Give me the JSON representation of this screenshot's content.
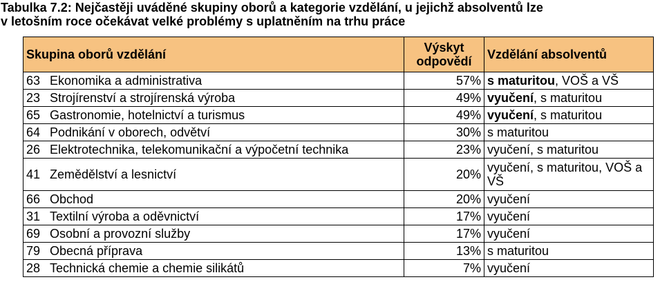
{
  "caption": {
    "line1": "Tabulka 7.2: Nejčastěji uváděné skupiny oborů a kategorie vzdělání, u jejichž absolventů lze",
    "line2": "v letošním roce očekávat velké problémy s uplatněním na trhu práce"
  },
  "table": {
    "header": {
      "group": "Skupina oborů vzdělání",
      "share_line1": "Výskyt",
      "share_line2": "odpovědí",
      "education": "Vzdělání absolventů"
    },
    "header_color": "#f7c281",
    "rows": [
      {
        "code": "63",
        "name": "Ekonomika a administrativa",
        "share": "57%",
        "edu_bold": "s maturitou",
        "edu_rest": ", VOŠ a VŠ"
      },
      {
        "code": "23",
        "name": "Strojírenství a strojírenská výroba",
        "share": "49%",
        "edu_bold": "vyučení",
        "edu_rest": ", s maturitou"
      },
      {
        "code": "65",
        "name": "Gastronomie, hotelnictví a turismus",
        "share": "49%",
        "edu_bold": "vyučení",
        "edu_rest": ", s maturitou"
      },
      {
        "code": "64",
        "name": "Podnikání v oborech, odvětví",
        "share": "30%",
        "edu_bold": "",
        "edu_rest": "s maturitou"
      },
      {
        "code": "26",
        "name": "Elektrotechnika, telekomunikační a výpočetní technika",
        "share": "23%",
        "edu_bold": "",
        "edu_rest": "vyučení, s maturitou"
      },
      {
        "code": "41",
        "name": "Zemědělství a lesnictví",
        "share": "20%",
        "edu_bold": "",
        "edu_rest": "vyučení, s maturitou, VOŠ a VŠ"
      },
      {
        "code": "66",
        "name": "Obchod",
        "share": "20%",
        "edu_bold": "",
        "edu_rest": "vyučení"
      },
      {
        "code": "31",
        "name": "Textilní výroba a oděvnictví",
        "share": "17%",
        "edu_bold": "",
        "edu_rest": "vyučení"
      },
      {
        "code": "69",
        "name": "Osobní a provozní služby",
        "share": "17%",
        "edu_bold": "",
        "edu_rest": "vyučení"
      },
      {
        "code": "79",
        "name": "Obecná příprava",
        "share": "13%",
        "edu_bold": "",
        "edu_rest": "s maturitou"
      },
      {
        "code": "28",
        "name": "Technická chemie a chemie silikátů",
        "share": "7%",
        "edu_bold": "",
        "edu_rest": "vyučení"
      }
    ]
  }
}
